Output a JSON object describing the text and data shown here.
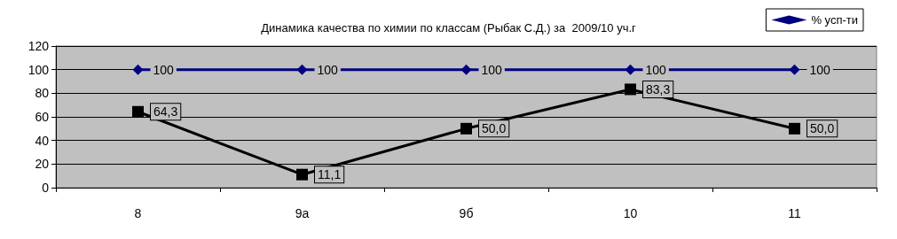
{
  "chart_data": {
    "type": "line",
    "title": "Динамика качества по химии по классам (Рыбак С.Д.) за  2009/10 уч.г",
    "categories": [
      "8",
      "9а",
      "9б",
      "10",
      "11"
    ],
    "series": [
      {
        "name": "% усп-ти",
        "color": "#000080",
        "marker": "diamond",
        "values": [
          100,
          100,
          100,
          100,
          100
        ],
        "value_labels": [
          "100",
          "100",
          "100",
          "100",
          "100"
        ]
      },
      {
        "color": "#000000",
        "marker": "square",
        "values": [
          64.3,
          11.1,
          50.0,
          83.3,
          50.0
        ],
        "value_labels": [
          "64,3",
          "11,1",
          "50,0",
          "83,3",
          "50,0"
        ]
      }
    ],
    "ylim": [
      0,
      120
    ],
    "yticks": [
      0,
      20,
      40,
      60,
      80,
      100,
      120
    ],
    "grid": "y",
    "legend": "top right"
  }
}
